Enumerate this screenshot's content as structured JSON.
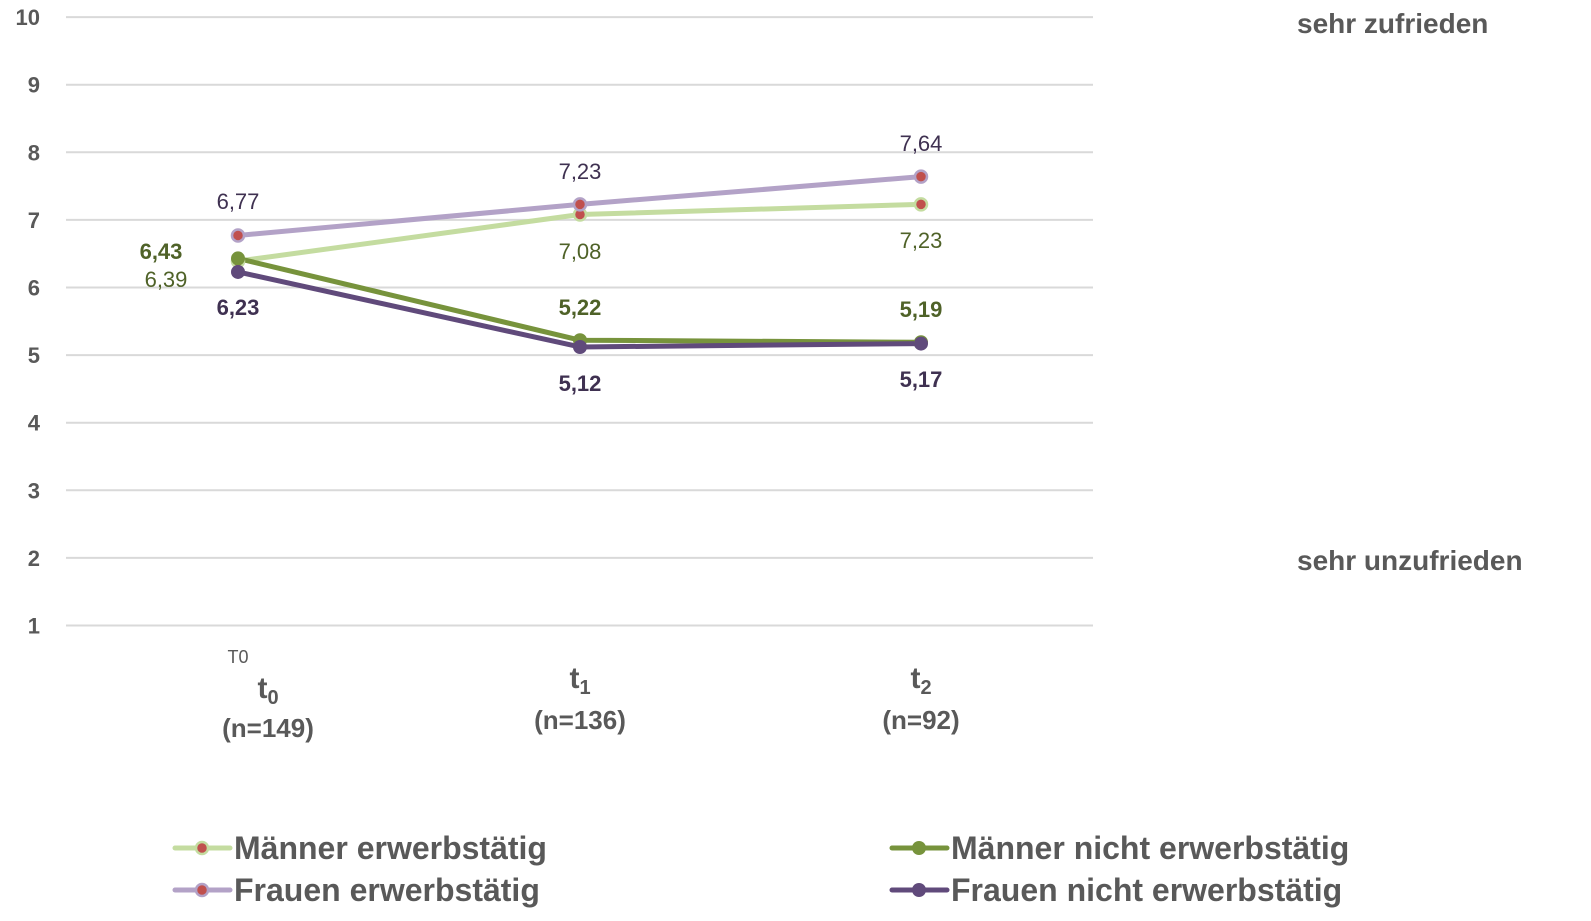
{
  "chart_data": {
    "type": "line",
    "x": [
      "t0",
      "t1",
      "t2"
    ],
    "x_tick_labels": [
      {
        "main": "t",
        "sub": "0",
        "n": "(n=149)"
      },
      {
        "main": "t",
        "sub": "1",
        "n": "(n=136)"
      },
      {
        "main": "t",
        "sub": "2",
        "n": "(n=92)"
      }
    ],
    "stray_label": "T0",
    "ylim": [
      1,
      10
    ],
    "y_ticks": [
      1,
      2,
      3,
      4,
      5,
      6,
      7,
      8,
      9,
      10
    ],
    "grid": true,
    "legend_position": "bottom",
    "annotations": {
      "top": "sehr zufrieden",
      "bottom": "sehr unzufrieden"
    },
    "series": [
      {
        "name": "Männer erwerbstätig",
        "values": [
          6.39,
          7.08,
          7.23
        ],
        "labels": [
          "6,39",
          "7,08",
          "7,23"
        ],
        "line_color": "#c4dca0",
        "marker_color": "#c0504d",
        "label_color": "#4f6228",
        "bold": false
      },
      {
        "name": "Frauen erwerbstätig",
        "values": [
          6.77,
          7.23,
          7.64
        ],
        "labels": [
          "6,77",
          "7,23",
          "7,64"
        ],
        "line_color": "#b3a2c7",
        "marker_color": "#c0504d",
        "label_color": "#3f3151",
        "bold": false
      },
      {
        "name": "Männer nicht erwerbstätig",
        "values": [
          6.43,
          5.22,
          5.19
        ],
        "labels": [
          "6,43",
          "5,22",
          "5,19"
        ],
        "line_color": "#77933c",
        "marker_color": "#77933c",
        "label_color": "#4f6228",
        "bold": true
      },
      {
        "name": "Frauen nicht erwerbstätig",
        "values": [
          6.23,
          5.12,
          5.17
        ],
        "labels": [
          "6,23",
          "5,12",
          "5,17"
        ],
        "line_color": "#604a7b",
        "marker_color": "#604a7b",
        "label_color": "#3f3151",
        "bold": true
      }
    ]
  }
}
